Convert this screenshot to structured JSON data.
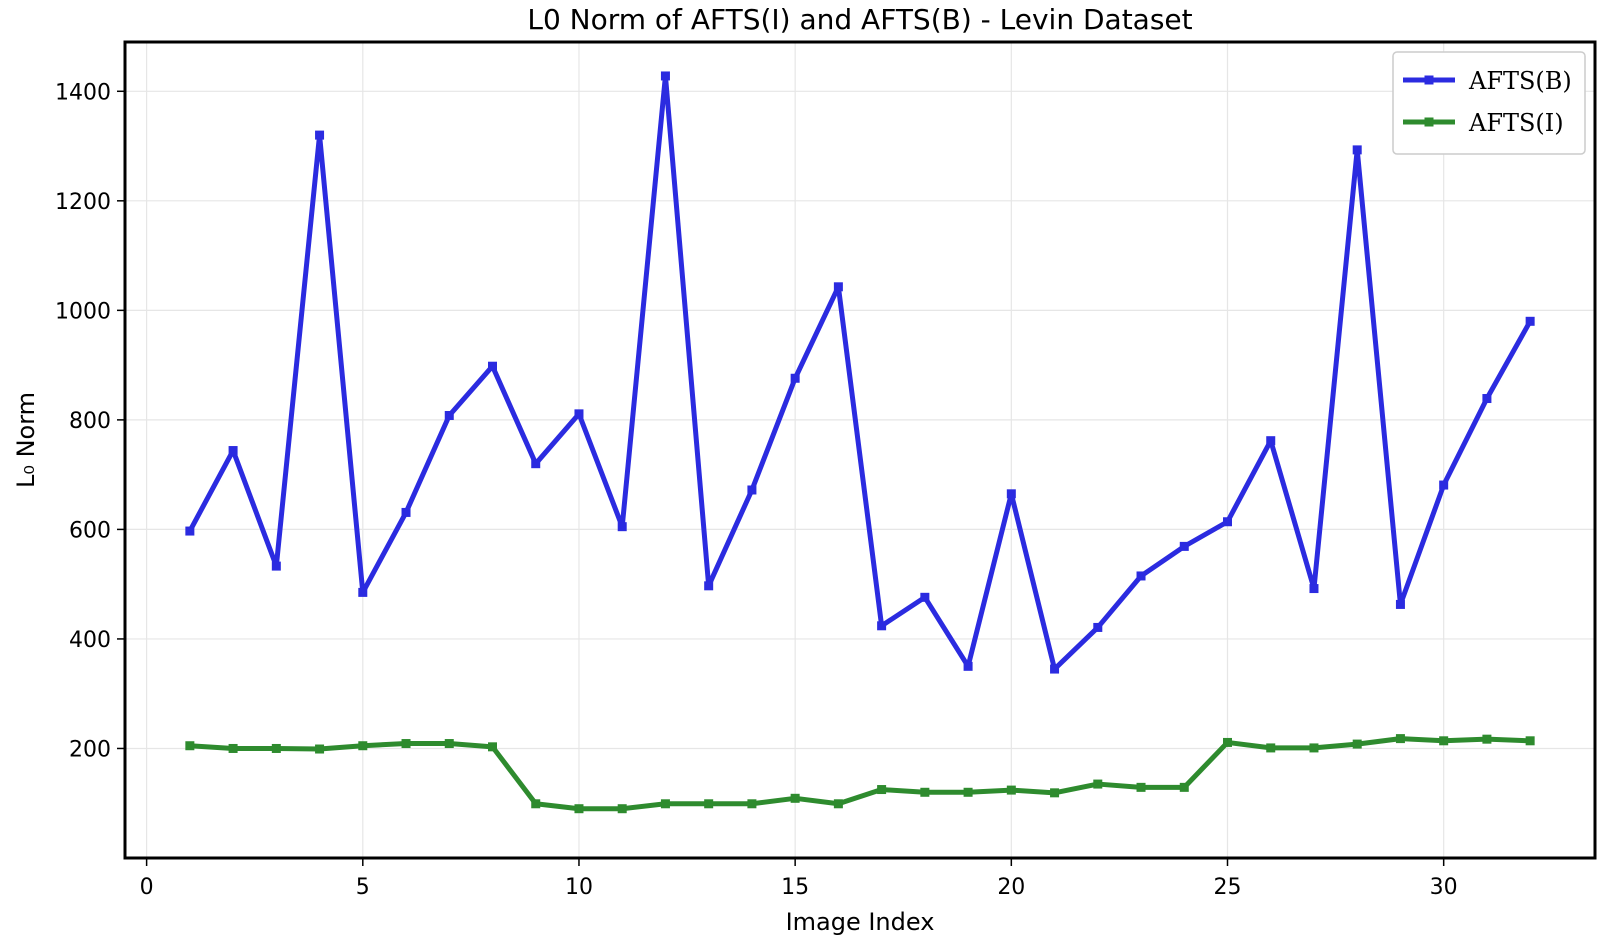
{
  "chart_data": {
    "type": "line",
    "title": "L0 Norm of AFTS(I) and AFTS(B) - Levin Dataset",
    "xlabel": "Image Index",
    "ylabel": "L₀ Norm",
    "xlim": [
      -0.5,
      33.5
    ],
    "ylim": [
      0,
      1490
    ],
    "xticks": [
      0,
      5,
      10,
      15,
      20,
      25,
      30
    ],
    "yticks": [
      200,
      400,
      600,
      800,
      1000,
      1200,
      1400
    ],
    "grid": true,
    "legend_position": "top-right",
    "x": [
      1,
      2,
      3,
      4,
      5,
      6,
      7,
      8,
      9,
      10,
      11,
      12,
      13,
      14,
      15,
      16,
      17,
      18,
      19,
      20,
      21,
      22,
      23,
      24,
      25,
      26,
      27,
      28,
      29,
      30,
      31,
      32
    ],
    "series": [
      {
        "name": "AFTS(B)",
        "color": "#2b2be0",
        "values": [
          597,
          744,
          533,
          1320,
          485,
          631,
          808,
          898,
          720,
          811,
          605,
          1428,
          497,
          672,
          876,
          1043,
          424,
          476,
          350,
          665,
          345,
          421,
          515,
          569,
          614,
          762,
          492,
          1293,
          463,
          681,
          839,
          980
        ]
      },
      {
        "name": "AFTS(I)",
        "color": "#2e8b2e",
        "values": [
          205,
          200,
          200,
          199,
          205,
          209,
          209,
          203,
          99,
          90,
          90,
          99,
          99,
          99,
          109,
          99,
          125,
          120,
          120,
          124,
          119,
          135,
          129,
          129,
          211,
          201,
          201,
          208,
          218,
          214,
          217,
          214
        ]
      }
    ]
  }
}
